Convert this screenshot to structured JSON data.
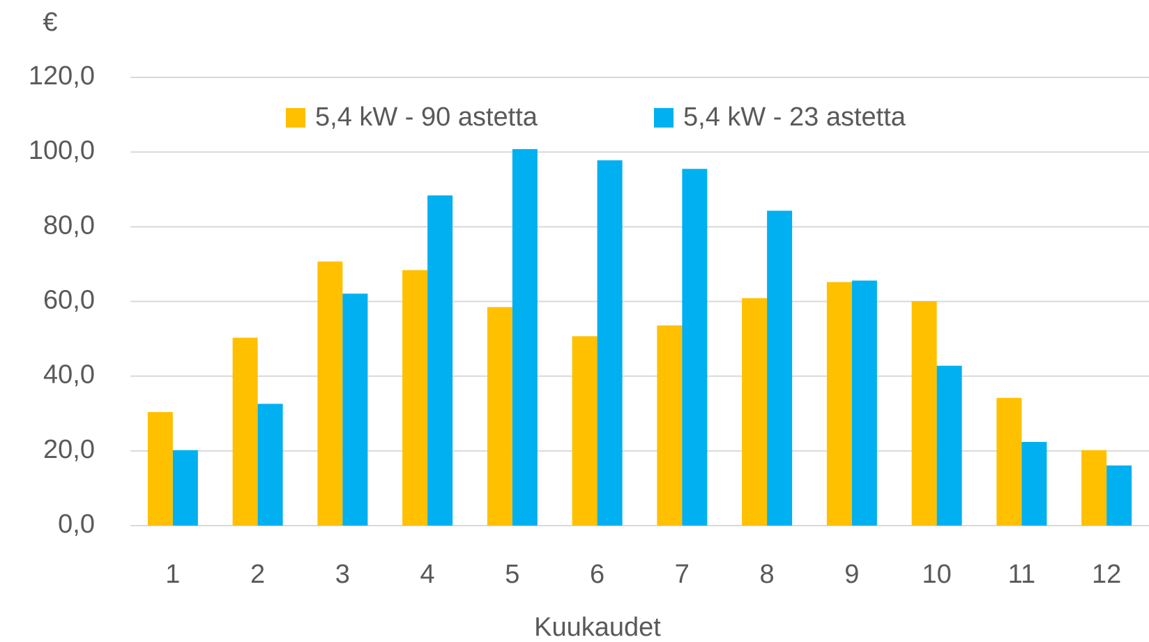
{
  "chart_data": {
    "type": "bar",
    "y_unit": "€",
    "x_label": "Kuukaudet",
    "categories": [
      "1",
      "2",
      "3",
      "4",
      "5",
      "6",
      "7",
      "8",
      "9",
      "10",
      "11",
      "12"
    ],
    "series": [
      {
        "name": "5,4 kW - 90 astetta",
        "color": "#ffc000",
        "values": [
          30.4,
          50.3,
          70.7,
          68.4,
          58.5,
          50.7,
          53.6,
          60.9,
          65.2,
          60.1,
          34.2,
          20.2
        ]
      },
      {
        "name": "5,4 kW - 23 astetta",
        "color": "#00b0f0",
        "values": [
          20.2,
          32.6,
          62.1,
          88.4,
          100.8,
          97.8,
          95.5,
          84.3,
          65.6,
          42.8,
          22.4,
          16.1
        ]
      }
    ],
    "ylim": [
      0,
      120
    ],
    "yticks": [
      {
        "value": 0,
        "label": "0,0"
      },
      {
        "value": 20,
        "label": "20,0"
      },
      {
        "value": 40,
        "label": "40,0"
      },
      {
        "value": 60,
        "label": "60,0"
      },
      {
        "value": 80,
        "label": "80,0"
      },
      {
        "value": 100,
        "label": "100,0"
      },
      {
        "value": 120,
        "label": "120,0"
      }
    ],
    "grid": true,
    "legend": "top"
  }
}
